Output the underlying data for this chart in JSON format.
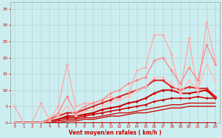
{
  "xlabel": "Vent moyen/en rafales ( km/h )",
  "xlim": [
    -0.5,
    23.5
  ],
  "ylim": [
    0,
    37
  ],
  "yticks": [
    0,
    5,
    10,
    15,
    20,
    25,
    30,
    35
  ],
  "xticks": [
    0,
    1,
    2,
    3,
    4,
    5,
    6,
    7,
    8,
    9,
    10,
    11,
    12,
    13,
    14,
    15,
    16,
    17,
    18,
    19,
    20,
    21,
    22,
    23
  ],
  "background_color": "#cceef0",
  "grid_color": "#aacccc",
  "series": [
    {
      "x": [
        0,
        1,
        2,
        3,
        4,
        5,
        6,
        7,
        8,
        9,
        10,
        11,
        12,
        13,
        14,
        15,
        16,
        17,
        18,
        19,
        20,
        21,
        22,
        23
      ],
      "y": [
        0,
        0,
        0,
        0,
        0,
        0,
        0,
        0,
        0,
        0,
        0,
        0,
        0,
        0,
        0,
        0,
        0,
        0,
        0,
        0,
        0,
        0,
        0,
        0
      ],
      "color": "#cc0000",
      "linewidth": 1.2,
      "marker": "D",
      "markersize": 1.5
    },
    {
      "x": [
        0,
        1,
        2,
        3,
        4,
        5,
        6,
        7,
        8,
        9,
        10,
        11,
        12,
        13,
        14,
        15,
        16,
        17,
        18,
        19,
        20,
        21,
        22,
        23
      ],
      "y": [
        0,
        0,
        0,
        0,
        0,
        0,
        0.5,
        0.5,
        1,
        1,
        1.5,
        2,
        2,
        2.5,
        3,
        3,
        3.5,
        4,
        4.5,
        4.5,
        5,
        5,
        5,
        5
      ],
      "color": "#cc0000",
      "linewidth": 1.0,
      "marker": "None",
      "markersize": 1.5
    },
    {
      "x": [
        0,
        1,
        2,
        3,
        4,
        5,
        6,
        7,
        8,
        9,
        10,
        11,
        12,
        13,
        14,
        15,
        16,
        17,
        18,
        19,
        20,
        21,
        22,
        23
      ],
      "y": [
        0,
        0,
        0,
        0,
        0,
        0.5,
        1,
        1,
        1.5,
        1.5,
        2,
        2.5,
        3,
        3,
        3.5,
        4,
        4.5,
        5,
        5.5,
        5.5,
        6,
        6,
        6,
        6
      ],
      "color": "#cc0000",
      "linewidth": 1.0,
      "marker": "None",
      "markersize": 1.5
    },
    {
      "x": [
        0,
        1,
        2,
        3,
        4,
        5,
        6,
        7,
        8,
        9,
        10,
        11,
        12,
        13,
        14,
        15,
        16,
        17,
        18,
        19,
        20,
        21,
        22,
        23
      ],
      "y": [
        0,
        0,
        0,
        0,
        0.5,
        1,
        1.5,
        1.5,
        2,
        2.5,
        3,
        3.5,
        4,
        4.5,
        5,
        5.5,
        6.5,
        7,
        7.5,
        7.5,
        7.5,
        8,
        7.5,
        7.5
      ],
      "color": "#cc0000",
      "linewidth": 1.2,
      "marker": "D",
      "markersize": 1.8
    },
    {
      "x": [
        0,
        1,
        2,
        3,
        4,
        5,
        6,
        7,
        8,
        9,
        10,
        11,
        12,
        13,
        14,
        15,
        16,
        17,
        18,
        19,
        20,
        21,
        22,
        23
      ],
      "y": [
        0,
        0,
        0,
        0,
        0.5,
        1,
        2,
        2,
        2.5,
        3,
        4,
        4.5,
        5,
        6,
        6.5,
        7.5,
        9,
        10,
        10,
        9,
        9,
        9.5,
        10,
        7.5
      ],
      "color": "#cc0000",
      "linewidth": 1.5,
      "marker": "D",
      "markersize": 2.0
    },
    {
      "x": [
        0,
        1,
        2,
        3,
        4,
        5,
        6,
        7,
        8,
        9,
        10,
        11,
        12,
        13,
        14,
        15,
        16,
        17,
        18,
        19,
        20,
        21,
        22,
        23
      ],
      "y": [
        0,
        0,
        0,
        0,
        1,
        2,
        3,
        3,
        4,
        5,
        6,
        7,
        8,
        9,
        10,
        11,
        13,
        13,
        11,
        10,
        11,
        10.5,
        10.5,
        8
      ],
      "color": "#dd2222",
      "linewidth": 1.5,
      "marker": "D",
      "markersize": 2.0
    },
    {
      "x": [
        0,
        1,
        2,
        3,
        4,
        5,
        6,
        7,
        8,
        9,
        10,
        11,
        12,
        13,
        14,
        15,
        16,
        17,
        18,
        19,
        20,
        21,
        22,
        23
      ],
      "y": [
        5,
        0,
        0,
        6,
        1,
        5,
        18,
        5,
        6,
        6,
        7,
        8,
        7,
        8,
        16,
        17,
        27,
        27,
        21,
        9,
        26,
        9,
        31,
        19
      ],
      "color": "#ffaaaa",
      "linewidth": 1.0,
      "marker": "D",
      "markersize": 2.0
    },
    {
      "x": [
        0,
        1,
        2,
        3,
        4,
        5,
        6,
        7,
        8,
        9,
        10,
        11,
        12,
        13,
        14,
        15,
        16,
        17,
        18,
        19,
        20,
        21,
        22,
        23
      ],
      "y": [
        0,
        0,
        0,
        0,
        1,
        3,
        8,
        3,
        5,
        6,
        7,
        9,
        10,
        12,
        13,
        14,
        19,
        20,
        16,
        12,
        17,
        13,
        24,
        18
      ],
      "color": "#ff8888",
      "linewidth": 1.0,
      "marker": "D",
      "markersize": 2.0
    },
    {
      "x": [
        0,
        1,
        2,
        3,
        4,
        5,
        6,
        7,
        8,
        9,
        10,
        11,
        12,
        13,
        14,
        15,
        16,
        17,
        18,
        19,
        20,
        21,
        22,
        23
      ],
      "y": [
        0,
        0,
        0,
        0,
        0.5,
        2,
        5,
        2,
        3.5,
        4,
        5,
        6,
        7,
        8,
        10,
        11,
        14,
        14,
        12,
        9,
        13,
        10,
        18,
        13
      ],
      "color": "#ffbbbb",
      "linewidth": 1.0,
      "marker": "D",
      "markersize": 2.0
    }
  ]
}
